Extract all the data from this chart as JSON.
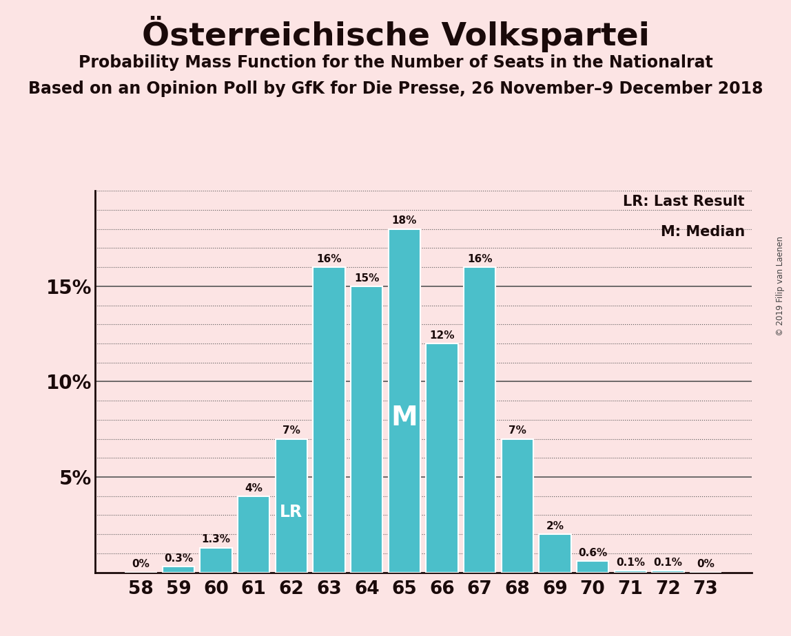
{
  "title": "Österreichische Volkspartei",
  "subtitle1": "Probability Mass Function for the Number of Seats in the Nationalrat",
  "subtitle2": "Based on an Opinion Poll by GfK for Die Presse, 26 November–9 December 2018",
  "watermark": "© 2019 Filip van Laenen",
  "categories": [
    58,
    59,
    60,
    61,
    62,
    63,
    64,
    65,
    66,
    67,
    68,
    69,
    70,
    71,
    72,
    73
  ],
  "values": [
    0.0,
    0.3,
    1.3,
    4.0,
    7.0,
    16.0,
    15.0,
    18.0,
    12.0,
    16.0,
    7.0,
    2.0,
    0.6,
    0.1,
    0.1,
    0.0
  ],
  "bar_color": "#4bbfca",
  "background_color": "#fce4e4",
  "text_color": "#1a0a0a",
  "lr_index": 4,
  "median_index": 7,
  "lr_label": "LR",
  "median_label": "M",
  "legend_lr": "LR: Last Result",
  "legend_m": "M: Median",
  "yticks_major": [
    5,
    10,
    15
  ],
  "ylim": [
    0,
    20
  ],
  "bar_labels": [
    "0%",
    "0.3%",
    "1.3%",
    "4%",
    "7%",
    "16%",
    "15%",
    "18%",
    "12%",
    "16%",
    "7%",
    "2%",
    "0.6%",
    "0.1%",
    "0.1%",
    "0%"
  ]
}
